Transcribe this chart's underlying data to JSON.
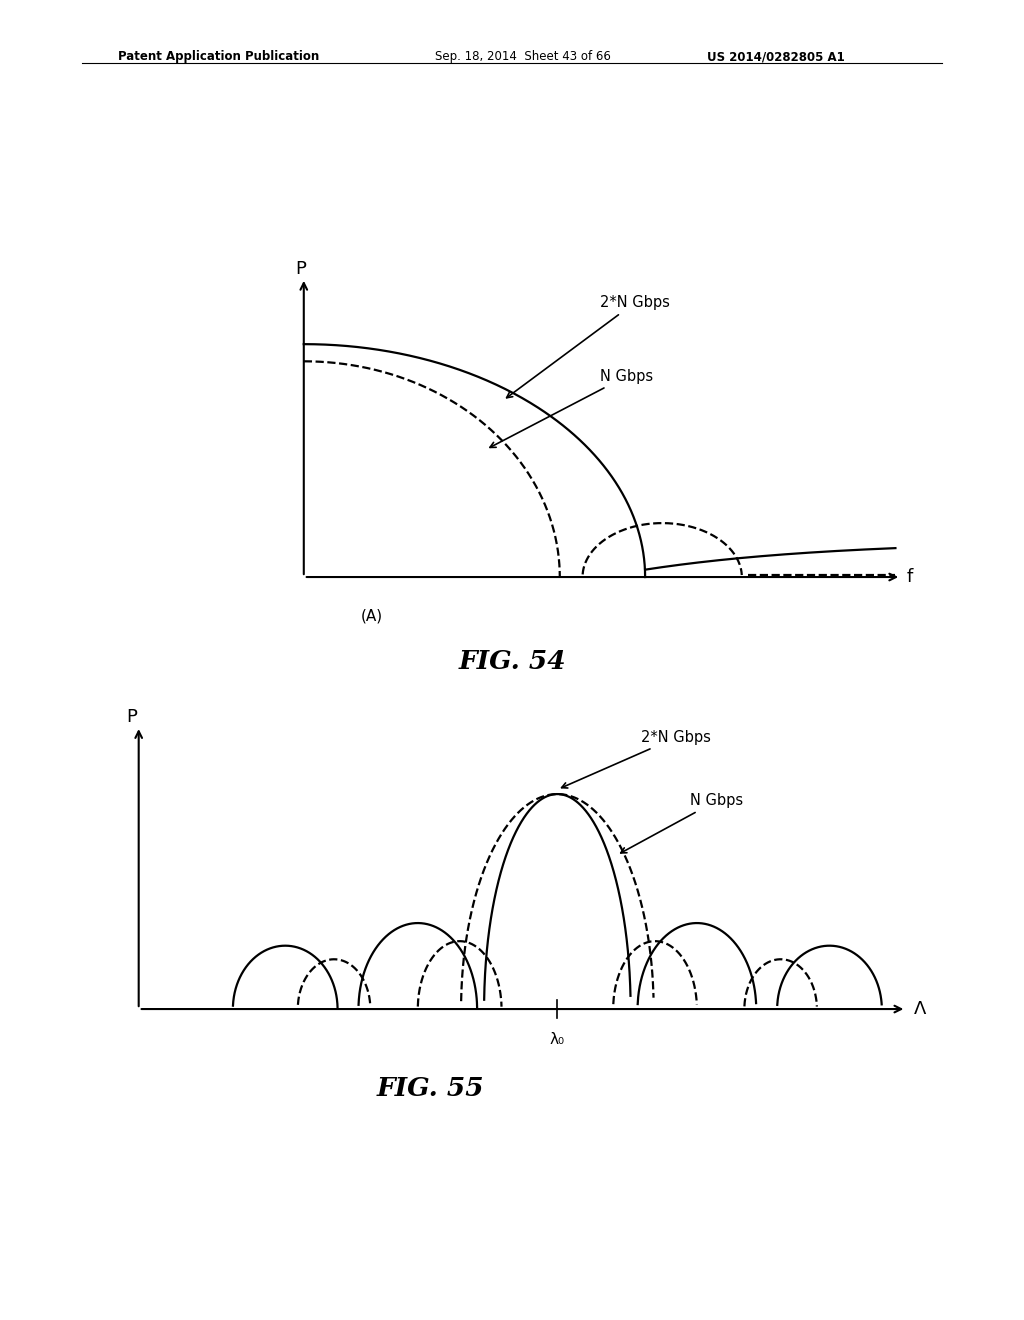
{
  "bg_color": "#ffffff",
  "header_left": "Patent Application Publication",
  "header_mid": "Sep. 18, 2014  Sheet 43 of 66",
  "header_right": "US 2014/0282805 A1",
  "fig54_title": "FIG. 54",
  "fig55_title": "FIG. 55",
  "fig54_xlabel": "f",
  "fig54_ylabel": "P",
  "fig54_label_A": "(A)",
  "fig55_xlabel": "Λ",
  "fig55_ylabel": "P",
  "fig55_label_lambda0": "λ₀",
  "label_2N": "2*N Gbps",
  "label_N": "N Gbps",
  "line_color": "#000000",
  "line_width": 1.6,
  "dashed_style": "--",
  "solid_style": "-"
}
